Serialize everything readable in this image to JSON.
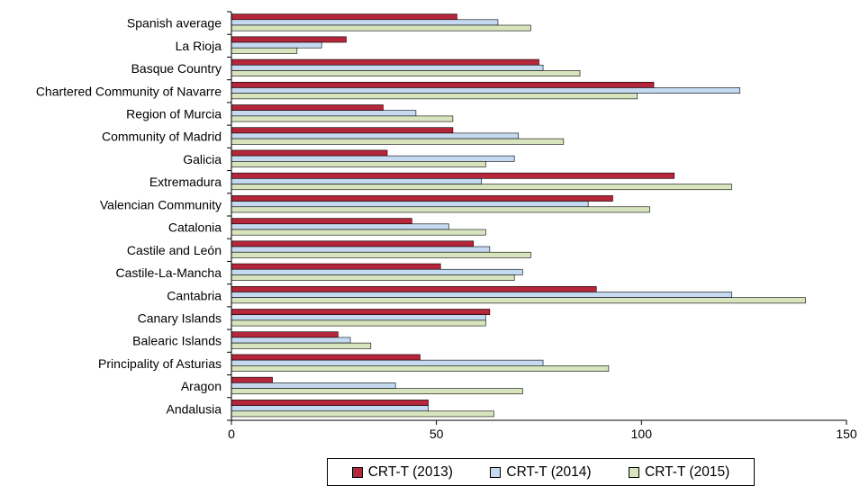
{
  "chart_data": {
    "type": "bar",
    "orientation": "horizontal",
    "categories": [
      "Spanish average",
      "La Rioja",
      "Basque Country",
      "Chartered Community of Navarre",
      "Region of Murcia",
      "Community of Madrid",
      "Galicia",
      "Extremadura",
      "Valencian Community",
      "Catalonia",
      "Castile and León",
      "Castile-La-Mancha",
      "Cantabria",
      "Canary Islands",
      "Balearic Islands",
      "Principality of Asturias",
      "Aragon",
      "Andalusia"
    ],
    "series": [
      {
        "name": "CRT-T (2013)",
        "color": "#b5263a",
        "values": [
          55,
          28,
          75,
          103,
          37,
          54,
          38,
          108,
          93,
          44,
          59,
          51,
          89,
          63,
          26,
          46,
          10,
          48
        ]
      },
      {
        "name": "CRT-T (2014)",
        "color": "#c5d9f1",
        "values": [
          65,
          22,
          76,
          124,
          45,
          70,
          69,
          61,
          87,
          53,
          63,
          71,
          122,
          62,
          29,
          76,
          40,
          48
        ]
      },
      {
        "name": "CRT-T (2015)",
        "color": "#d7e4bd",
        "values": [
          73,
          16,
          85,
          99,
          54,
          81,
          62,
          122,
          102,
          62,
          73,
          69,
          140,
          62,
          34,
          92,
          71,
          64
        ]
      }
    ],
    "xlim": [
      0,
      150
    ],
    "xticks": [
      0,
      50,
      100,
      150
    ],
    "title": "",
    "xlabel": "",
    "ylabel": "",
    "grid": false,
    "legend_position": "bottom"
  }
}
